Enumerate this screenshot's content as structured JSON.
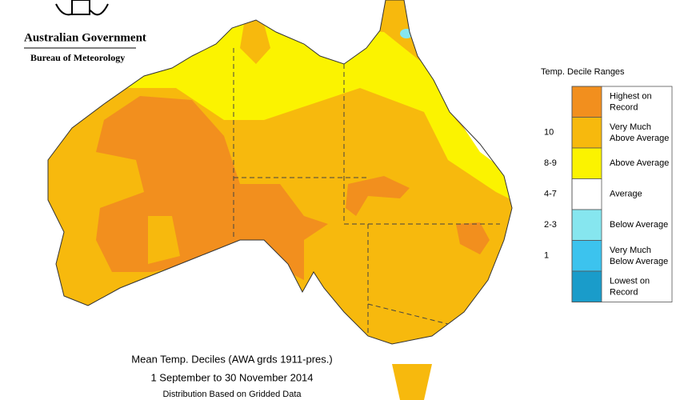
{
  "header": {
    "agency": "Australian Government",
    "bureau": "Bureau of Meteorology"
  },
  "legend": {
    "title": "Temp. Decile Ranges",
    "items": [
      {
        "label": "Highest on Record",
        "color": "#f28f1e"
      },
      {
        "range": "10",
        "label": "Very Much Above Average",
        "color": "#f7b90d"
      },
      {
        "range": "8-9",
        "label": "Above Average",
        "color": "#fbf300"
      },
      {
        "range": "4-7",
        "label": "Average",
        "color": "#ffffff"
      },
      {
        "range": "2-3",
        "label": "Below Average",
        "color": "#86e6ef"
      },
      {
        "range": "1",
        "label": "Very Much Below Average",
        "color": "#3cc3ee"
      },
      {
        "label": "Lowest on Record",
        "color": "#1a9cca"
      }
    ]
  },
  "caption": {
    "title": "Mean Temp. Deciles (AWA grds 1911-pres.)",
    "period": "1 September to 30 November 2014",
    "note": "Distribution Based on Gridded Data"
  }
}
